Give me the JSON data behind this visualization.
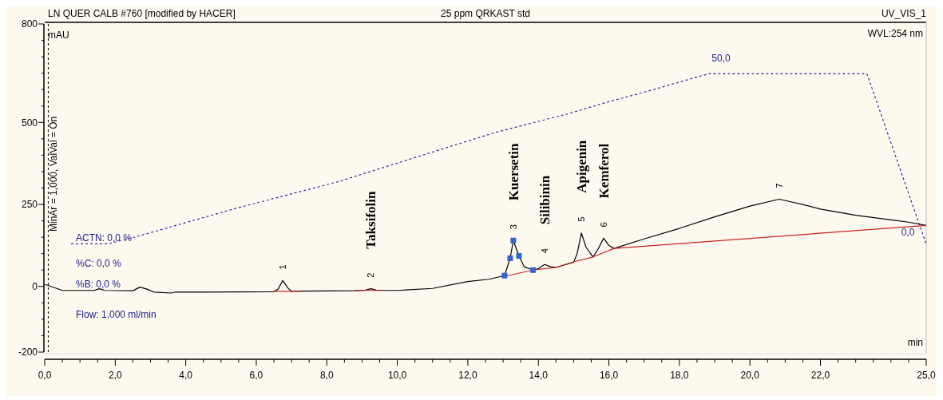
{
  "chart_data": {
    "type": "line",
    "title": "LN QUER CALB #760 [modified by HACER]",
    "subtitle": "25 ppm QRKAST std",
    "xlabel": "min",
    "ylabel": "mAU",
    "xlim": [
      0,
      25
    ],
    "ylim": [
      -200,
      800
    ],
    "xticks": [
      {
        "value": 0,
        "label": "0,0"
      },
      {
        "value": 0.5,
        "label": null
      },
      {
        "value": 1,
        "label": null
      },
      {
        "value": 1.5,
        "label": null
      },
      {
        "value": 2,
        "label": "2,0"
      },
      {
        "value": 2.5,
        "label": null
      },
      {
        "value": 3,
        "label": null
      },
      {
        "value": 3.5,
        "label": null
      },
      {
        "value": 4,
        "label": "4,0"
      },
      {
        "value": 4.5,
        "label": null
      },
      {
        "value": 5,
        "label": null
      },
      {
        "value": 5.5,
        "label": null
      },
      {
        "value": 6,
        "label": "6,0"
      },
      {
        "value": 6.5,
        "label": null
      },
      {
        "value": 7,
        "label": null
      },
      {
        "value": 7.5,
        "label": null
      },
      {
        "value": 8,
        "label": "8,0"
      },
      {
        "value": 8.5,
        "label": null
      },
      {
        "value": 9,
        "label": null
      },
      {
        "value": 9.5,
        "label": null
      },
      {
        "value": 10,
        "label": "10,0"
      },
      {
        "value": 10.5,
        "label": null
      },
      {
        "value": 11,
        "label": null
      },
      {
        "value": 11.5,
        "label": null
      },
      {
        "value": 12,
        "label": "12,0"
      },
      {
        "value": 12.5,
        "label": null
      },
      {
        "value": 13,
        "label": null
      },
      {
        "value": 13.5,
        "label": null
      },
      {
        "value": 14,
        "label": "14,0"
      },
      {
        "value": 14.5,
        "label": null
      },
      {
        "value": 15,
        "label": null
      },
      {
        "value": 15.5,
        "label": null
      },
      {
        "value": 16,
        "label": "16,0"
      },
      {
        "value": 16.5,
        "label": null
      },
      {
        "value": 17,
        "label": null
      },
      {
        "value": 17.5,
        "label": null
      },
      {
        "value": 18,
        "label": "18,0"
      },
      {
        "value": 18.5,
        "label": null
      },
      {
        "value": 19,
        "label": null
      },
      {
        "value": 19.5,
        "label": null
      },
      {
        "value": 20,
        "label": "20,0"
      },
      {
        "value": 20.5,
        "label": null
      },
      {
        "value": 21,
        "label": null
      },
      {
        "value": 21.5,
        "label": null
      },
      {
        "value": 22,
        "label": "22,0"
      },
      {
        "value": 22.5,
        "label": null
      },
      {
        "value": 23,
        "label": null
      },
      {
        "value": 23.5,
        "label": null
      },
      {
        "value": 24,
        "label": null
      },
      {
        "value": 24.5,
        "label": null
      },
      {
        "value": 25,
        "label": "25,0"
      }
    ],
    "yticks": [
      -200,
      {
        "value": -150,
        "label": null
      },
      {
        "value": -100,
        "label": null
      },
      {
        "value": -50,
        "label": null
      },
      0,
      {
        "value": 50,
        "label": null
      },
      {
        "value": 100,
        "label": null
      },
      {
        "value": 150,
        "label": null
      },
      {
        "value": 200,
        "label": null
      },
      250,
      {
        "value": 300,
        "label": null
      },
      {
        "value": 350,
        "label": null
      },
      {
        "value": 400,
        "label": null
      },
      {
        "value": 450,
        "label": null
      },
      500,
      {
        "value": 550,
        "label": null
      },
      {
        "value": 600,
        "label": null
      },
      {
        "value": 650,
        "label": null
      },
      {
        "value": 700,
        "label": null
      },
      {
        "value": 750,
        "label": null
      },
      800
    ],
    "grid": false,
    "series": [
      {
        "color": "#000000",
        "line_style": "solid",
        "x": [
          0,
          0.05,
          0.5,
          1.4,
          1.55,
          1.7,
          2.5,
          2.7,
          2.9,
          3.1,
          3.6,
          3.7,
          4.5,
          6.5,
          6.62,
          6.75,
          6.9,
          7.0,
          7.3,
          8.8,
          9.1,
          9.25,
          9.4,
          9.6,
          10,
          11,
          12,
          12.6,
          13.04,
          13.2,
          13.29,
          13.45,
          13.6,
          13.85,
          14.0,
          14.18,
          14.35,
          14.5,
          15.0,
          15.1,
          15.22,
          15.35,
          15.55,
          15.7,
          15.85,
          16.0,
          16.15,
          17.0,
          18.0,
          19.0,
          20.0,
          20.83,
          21.5,
          22.0,
          23.0,
          24.0,
          24.5,
          25.0
        ],
        "values": [
          5,
          5,
          -12,
          -12,
          -7,
          -12,
          -13,
          -2,
          -8,
          -17,
          -20,
          -17,
          -17,
          -16,
          -8,
          18,
          -5,
          -15,
          -14,
          -13,
          -11,
          -7,
          -11,
          -12,
          -12,
          -6,
          15,
          22,
          33,
          86,
          140,
          93,
          60,
          50,
          54,
          67,
          60,
          58,
          74,
          100,
          163,
          120,
          90,
          115,
          147,
          125,
          116,
          145,
          177,
          212,
          245,
          266,
          250,
          236,
          217,
          203,
          196,
          186
        ]
      },
      {
        "color": "#cc2222",
        "line_style": "solid",
        "x": [
          6.5,
          7.2,
          7.25,
          8.8,
          9.5,
          9.55,
          13.0,
          13.85,
          14.5,
          15.0,
          15.55,
          16.15,
          25.0
        ],
        "values": [
          -15,
          -15,
          null,
          -12,
          -12,
          null,
          30,
          50,
          58,
          75,
          90,
          116,
          186
        ]
      },
      {
        "color": "#2b2ba6",
        "line_style": "dashed",
        "x": [
          0.75,
          1.8,
          2.74,
          5.35,
          8.31,
          11.87,
          12.8,
          14.8,
          15.96,
          17.1,
          18.3,
          18.83,
          23.32,
          25.0
        ],
        "values": [
          130,
          130,
          156,
          236,
          319,
          439,
          470,
          525,
          562,
          595,
          632,
          648,
          648,
          129
        ]
      },
      {
        "type": "scatter",
        "color": "#3366cc",
        "marker": "square",
        "x": [
          13.04,
          13.2,
          13.29,
          13.45,
          13.85
        ],
        "values": [
          33,
          86,
          140,
          93,
          50
        ]
      }
    ],
    "ref_lines": [
      {
        "axis": "x",
        "value": 0.1,
        "line_style": "dashed",
        "color": "#000000"
      }
    ],
    "annotations": [
      "UV_VIS_1",
      "WVL:254 nm",
      "ACTN: 0,0 %",
      "%C: 0,0 %",
      "%B: 0,0 %",
      "Flow: 1,000 ml/min",
      "50,0",
      "0,0",
      "MinAr = 1,000, ValVal = On",
      {
        "text": "1",
        "x": 6.75,
        "y": 18
      },
      {
        "text": "2",
        "x": 9.25,
        "y": -7
      },
      {
        "text": "3",
        "x": 13.29,
        "y": 140
      },
      {
        "text": "4",
        "x": 14.18,
        "y": 67
      },
      {
        "text": "5",
        "x": 15.22,
        "y": 163
      },
      {
        "text": "6",
        "x": 15.85,
        "y": 147
      },
      {
        "text": "7",
        "x": 20.83,
        "y": 266
      },
      {
        "text": "Taksifolin",
        "x": 9.25,
        "y": -7
      },
      {
        "text": "Kuersetin",
        "x": 13.29,
        "y": 140
      },
      {
        "text": "Silibinin",
        "x": 14.18,
        "y": 67
      },
      {
        "text": "Apigenin",
        "x": 15.22,
        "y": 163
      },
      {
        "text": "Kemferol",
        "x": 15.85,
        "y": 147
      }
    ]
  }
}
